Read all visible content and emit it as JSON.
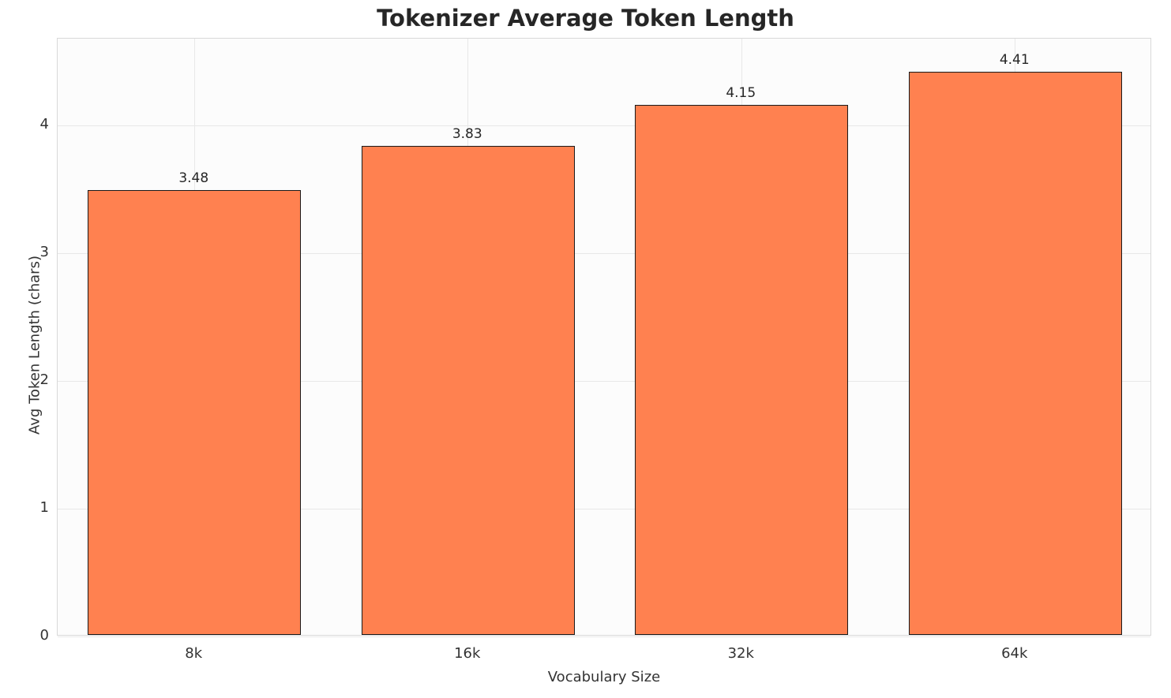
{
  "chart_data": {
    "type": "bar",
    "title": "Tokenizer Average Token Length",
    "xlabel": "Vocabulary Size",
    "ylabel": "Avg Token Length (chars)",
    "categories": [
      "8k",
      "16k",
      "32k",
      "64k"
    ],
    "values": [
      3.48,
      3.83,
      4.15,
      4.41
    ],
    "value_labels": [
      "3.48",
      "3.83",
      "4.15",
      "4.41"
    ],
    "yticks": [
      0,
      1,
      2,
      3,
      4
    ],
    "ylim": [
      0,
      4.68
    ],
    "grid": true,
    "legend_position": "none",
    "bar_color": "#ff8150",
    "bar_edge_color": "#1a1a1a",
    "grid_color": "#e8e8e8",
    "title_color": "#262626",
    "tick_label_color": "#333333"
  }
}
